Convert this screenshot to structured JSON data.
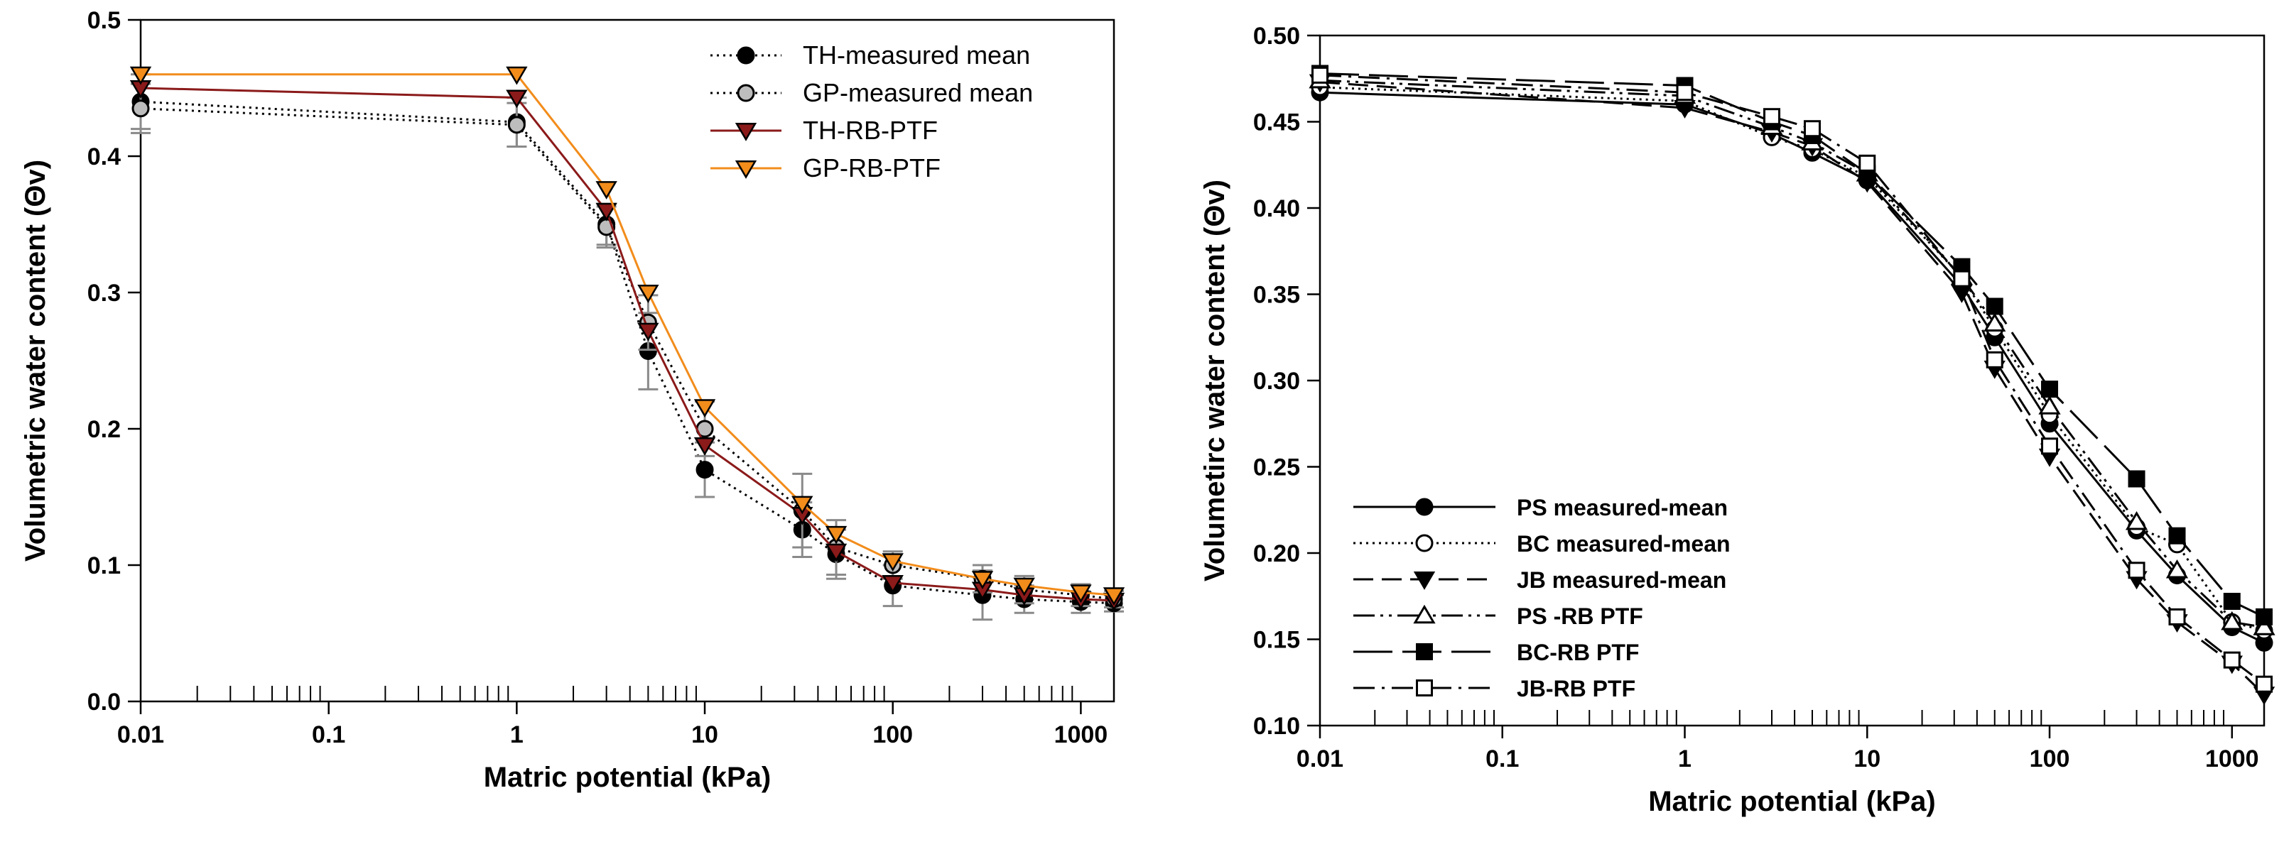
{
  "charts": [
    {
      "type": "line",
      "xscale": "log",
      "xlim": [
        0.01,
        1500
      ],
      "ylim": [
        0,
        0.5
      ],
      "xticks": [
        "0.01",
        "0.1",
        "1",
        "10",
        "100",
        "1000"
      ],
      "yticks": [
        "0.0",
        "0.1",
        "0.2",
        "0.3",
        "0.4",
        "0.5"
      ],
      "xlabel": "Matric potential (kPa)",
      "ylabel": "Volumetric water content (Θv)",
      "legend_position": "top-right",
      "series": [
        {
          "name": "TH-measured mean",
          "color": "#000000",
          "marker": "circle-filled",
          "line": "dotted",
          "x": [
            0.01,
            1,
            3,
            5,
            10,
            33,
            50,
            100,
            300,
            500,
            1000,
            1500
          ],
          "y": [
            0.44,
            0.425,
            0.35,
            0.257,
            0.17,
            0.126,
            0.108,
            0.085,
            0.078,
            0.075,
            0.073,
            0.072
          ],
          "err": [
            0.02,
            0.018,
            0.015,
            0.028,
            0.02,
            0.02,
            0.018,
            0.015,
            0.018,
            0.01,
            0.008,
            0.006
          ]
        },
        {
          "name": "GP-measured mean",
          "color": "#000000",
          "marker": "circle-gray",
          "line": "dotted",
          "x": [
            0.01,
            1,
            3,
            5,
            10,
            33,
            50,
            100,
            300,
            500,
            1000,
            1500
          ],
          "y": [
            0.435,
            0.423,
            0.348,
            0.278,
            0.2,
            0.14,
            0.113,
            0.1,
            0.09,
            0.082,
            0.078,
            0.075
          ],
          "err": [
            0.018,
            0.016,
            0.015,
            0.02,
            0.02,
            0.027,
            0.02,
            0.01,
            0.01,
            0.01,
            0.008,
            0.006
          ]
        },
        {
          "name": "TH-RB-PTF",
          "color": "#8b1a1a",
          "marker": "triangle-down-red",
          "line": "solid",
          "x": [
            0.01,
            1,
            3,
            5,
            10,
            33,
            50,
            100,
            300,
            500,
            1000,
            1500
          ],
          "y": [
            0.45,
            0.443,
            0.36,
            0.272,
            0.188,
            0.137,
            0.11,
            0.087,
            0.082,
            0.078,
            0.075,
            0.074
          ]
        },
        {
          "name": "GP-RB-PTF",
          "color": "#f28c1b",
          "marker": "triangle-down-orange",
          "line": "solid",
          "x": [
            0.01,
            1,
            3,
            5,
            10,
            33,
            50,
            100,
            300,
            500,
            1000,
            1500
          ],
          "y": [
            0.46,
            0.46,
            0.376,
            0.3,
            0.216,
            0.145,
            0.123,
            0.103,
            0.09,
            0.085,
            0.08,
            0.078
          ]
        }
      ]
    },
    {
      "type": "line",
      "xscale": "log",
      "xlim": [
        0.01,
        1500
      ],
      "ylim": [
        0.1,
        0.5
      ],
      "xticks": [
        "0.01",
        "0.1",
        "1",
        "10",
        "100",
        "1000"
      ],
      "yticks": [
        "0.10",
        "0.15",
        "0.20",
        "0.25",
        "0.30",
        "0.35",
        "0.40",
        "0.45",
        "0.50"
      ],
      "xlabel": "Matric potential (kPa)",
      "ylabel": "Volumetirc water content (Θv)",
      "legend_position": "bottom-left",
      "series": [
        {
          "name": "PS measured-mean",
          "color": "#000000",
          "marker": "circle-filled",
          "line": "solid",
          "x": [
            0.01,
            1,
            3,
            5,
            10,
            33,
            50,
            100,
            300,
            500,
            1000,
            1500
          ],
          "y": [
            0.467,
            0.46,
            0.443,
            0.432,
            0.416,
            0.355,
            0.325,
            0.275,
            0.213,
            0.187,
            0.157,
            0.148
          ]
        },
        {
          "name": "BC measured-mean",
          "color": "#000000",
          "marker": "circle-open",
          "line": "dotted",
          "x": [
            0.01,
            1,
            3,
            5,
            10,
            33,
            50,
            100,
            300,
            500,
            1000,
            1500
          ],
          "y": [
            0.47,
            0.462,
            0.441,
            0.434,
            0.418,
            0.36,
            0.33,
            0.28,
            0.215,
            0.205,
            0.16,
            0.155
          ]
        },
        {
          "name": "JB measured-mean",
          "color": "#000000",
          "marker": "triangle-down-filled",
          "line": "dashed",
          "x": [
            0.01,
            1,
            3,
            5,
            10,
            33,
            50,
            100,
            300,
            500,
            1000,
            1500
          ],
          "y": [
            0.473,
            0.458,
            0.444,
            0.436,
            0.415,
            0.351,
            0.307,
            0.256,
            0.185,
            0.16,
            0.136,
            0.118
          ]
        },
        {
          "name": "PS -RB PTF",
          "color": "#000000",
          "marker": "triangle-up-open",
          "line": "dashdotdot",
          "x": [
            0.01,
            1,
            3,
            5,
            10,
            33,
            50,
            100,
            300,
            500,
            1000,
            1500
          ],
          "y": [
            0.474,
            0.465,
            0.447,
            0.438,
            0.42,
            0.36,
            0.333,
            0.285,
            0.218,
            0.19,
            0.16,
            0.157
          ]
        },
        {
          "name": "BC-RB PTF",
          "color": "#000000",
          "marker": "square-filled",
          "line": "longdash",
          "x": [
            0.01,
            1,
            3,
            5,
            10,
            33,
            50,
            100,
            300,
            500,
            1000,
            1500
          ],
          "y": [
            0.478,
            0.471,
            0.45,
            0.442,
            0.42,
            0.366,
            0.343,
            0.295,
            0.243,
            0.21,
            0.172,
            0.163
          ]
        },
        {
          "name": "JB-RB PTF",
          "color": "#000000",
          "marker": "square-open",
          "line": "dashdot",
          "x": [
            0.01,
            1,
            3,
            5,
            10,
            33,
            50,
            100,
            300,
            500,
            1000,
            1500
          ],
          "y": [
            0.477,
            0.467,
            0.453,
            0.446,
            0.426,
            0.359,
            0.312,
            0.262,
            0.19,
            0.163,
            0.138,
            0.124
          ]
        }
      ]
    }
  ]
}
